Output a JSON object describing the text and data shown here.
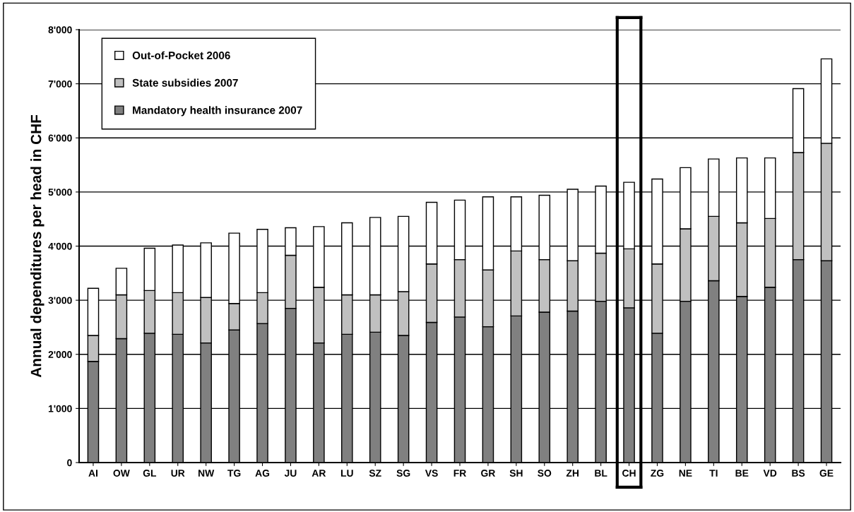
{
  "chart_data": {
    "type": "bar",
    "stacked": true,
    "ylabel": "Annual dependitures per head in CHF",
    "categories": [
      "AI",
      "OW",
      "GL",
      "UR",
      "NW",
      "TG",
      "AG",
      "JU",
      "AR",
      "LU",
      "SZ",
      "SG",
      "VS",
      "FR",
      "GR",
      "SH",
      "SO",
      "ZH",
      "BL",
      "CH",
      "ZG",
      "NE",
      "TI",
      "BE",
      "VD",
      "BS",
      "GE"
    ],
    "series": [
      {
        "name": "Mandatory health insurance 2007",
        "color": "#808080",
        "values": [
          1870,
          2290,
          2390,
          2370,
          2210,
          2450,
          2570,
          2850,
          2210,
          2370,
          2410,
          2350,
          2590,
          2690,
          2510,
          2710,
          2780,
          2800,
          2980,
          2860,
          2390,
          2980,
          3360,
          3070,
          3240,
          3750,
          3730
        ]
      },
      {
        "name": "State subsidies 2007",
        "color": "#c0c0c0",
        "values": [
          480,
          810,
          790,
          770,
          840,
          490,
          570,
          980,
          1030,
          730,
          690,
          810,
          1080,
          1060,
          1050,
          1200,
          970,
          930,
          890,
          1090,
          1280,
          1340,
          1190,
          1360,
          1270,
          1980,
          2170
        ]
      },
      {
        "name": "Out-of-Pocket 2006",
        "color": "#ffffff",
        "values": [
          870,
          490,
          780,
          880,
          1010,
          1300,
          1170,
          510,
          1120,
          1330,
          1430,
          1390,
          1140,
          1100,
          1350,
          1000,
          1190,
          1320,
          1240,
          1230,
          1570,
          1130,
          1060,
          1200,
          1120,
          1180,
          1560
        ]
      }
    ],
    "ylim": [
      0,
      8000
    ],
    "yticks": [
      0,
      {
        "value": 1000,
        "label": "1'000"
      },
      {
        "value": 2000,
        "label": "2'000"
      },
      {
        "value": 3000,
        "label": "3'000"
      },
      {
        "value": 4000,
        "label": "4'000"
      },
      {
        "value": 5000,
        "label": "5'000"
      },
      {
        "value": 6000,
        "label": "6'000"
      },
      {
        "value": 7000,
        "label": "7'000"
      },
      {
        "value": 8000,
        "label": "8'000"
      }
    ],
    "grid": "y",
    "legend": "top left"
  }
}
